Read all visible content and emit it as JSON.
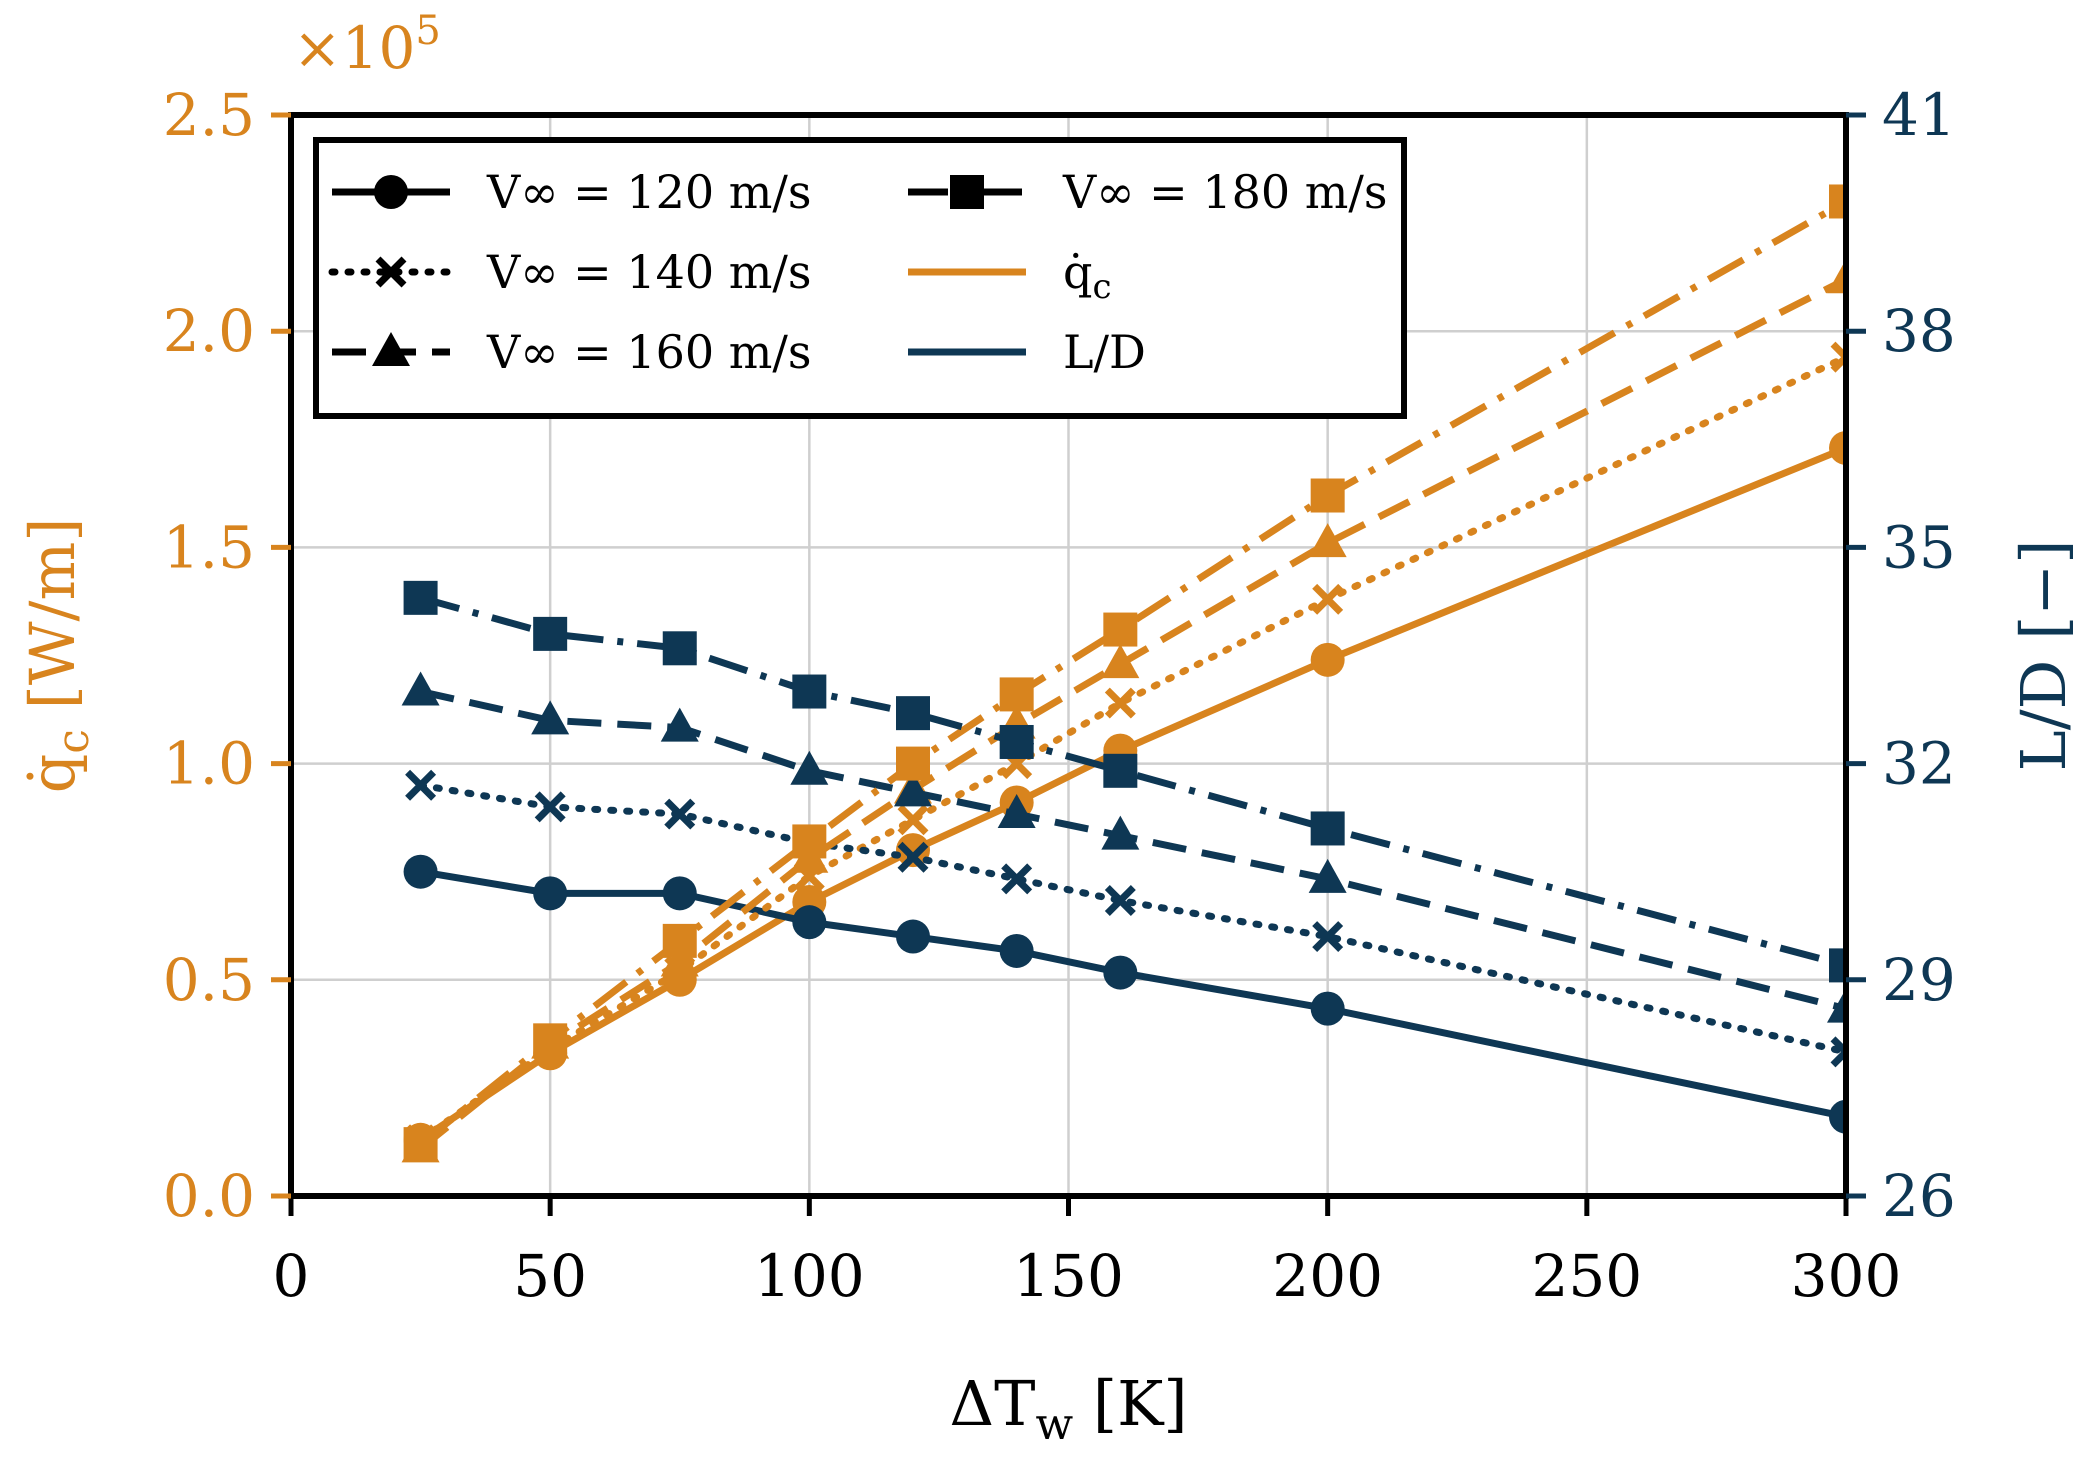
{
  "chart_data": {
    "type": "line",
    "x_axis": {
      "label": "ΔT",
      "label_subscript": "w",
      "label_unit": " [K]",
      "lim": [
        0,
        300
      ],
      "ticks": [
        0,
        50,
        100,
        150,
        200,
        250,
        300
      ]
    },
    "y_left": {
      "label": "q̇",
      "label_subscript": "c",
      "label_unit": " [W/m]",
      "lim": [
        0,
        2.5
      ],
      "ticks": [
        0.0,
        0.5,
        1.0,
        1.5,
        2.0,
        2.5
      ],
      "tick_labels": [
        "0.0",
        "0.5",
        "1.0",
        "1.5",
        "2.0",
        "2.5"
      ],
      "multiplier_base": "×10",
      "multiplier_exp": "5",
      "color": "#D8841E"
    },
    "y_right": {
      "label": "L/D [−]",
      "lim": [
        26,
        41
      ],
      "ticks": [
        26,
        29,
        32,
        35,
        38,
        41
      ],
      "color": "#0E3754"
    },
    "grid": true,
    "x": [
      25,
      50,
      75,
      100,
      120,
      140,
      160,
      200,
      300
    ],
    "series": [
      {
        "name": "V∞ = 120 m/s",
        "marker": "circle",
        "linestyle": "solid",
        "heat_flux": [
          0.13,
          0.33,
          0.5,
          0.68,
          0.8,
          0.91,
          1.03,
          1.24,
          1.73
        ],
        "lift_to_drag": [
          30.5,
          30.2,
          30.2,
          29.8,
          29.6,
          29.4,
          29.1,
          28.6,
          27.1
        ]
      },
      {
        "name": "V∞ = 140 m/s",
        "marker": "x",
        "linestyle": "dotted",
        "heat_flux": [
          0.13,
          0.34,
          0.52,
          0.74,
          0.87,
          1.0,
          1.14,
          1.38,
          1.94
        ],
        "lift_to_drag": [
          31.7,
          31.4,
          31.3,
          30.9,
          30.7,
          30.4,
          30.1,
          29.6,
          28.0
        ]
      },
      {
        "name": "V∞ = 160 m/s",
        "marker": "triangle",
        "linestyle": "dashed",
        "heat_flux": [
          0.11,
          0.35,
          0.54,
          0.78,
          0.94,
          1.09,
          1.23,
          1.51,
          2.12
        ],
        "lift_to_drag": [
          33.0,
          32.6,
          32.5,
          31.9,
          31.6,
          31.3,
          31.0,
          30.4,
          28.6
        ]
      },
      {
        "name": "V∞ = 180 m/s",
        "marker": "square",
        "linestyle": "dashdot",
        "heat_flux": [
          0.12,
          0.36,
          0.59,
          0.82,
          1.0,
          1.16,
          1.31,
          1.62,
          2.3
        ],
        "lift_to_drag": [
          34.3,
          33.8,
          33.6,
          33.0,
          32.7,
          32.3,
          31.9,
          31.1,
          29.2
        ]
      }
    ],
    "legend": {
      "location": "upper-left",
      "entries": [
        {
          "key": "s0",
          "label": "V∞ = 120 m/s"
        },
        {
          "key": "s1",
          "label": "V∞ = 140 m/s"
        },
        {
          "key": "s2",
          "label": "V∞ = 160 m/s"
        },
        {
          "key": "s3",
          "label": "V∞ = 180 m/s"
        },
        {
          "key": "qc",
          "label": "q̇",
          "subscript": "c"
        },
        {
          "key": "ld",
          "label": "L/D"
        }
      ]
    }
  }
}
